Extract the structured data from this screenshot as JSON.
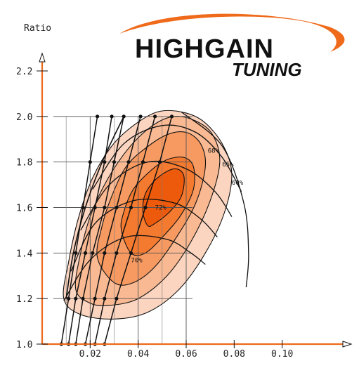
{
  "logo": {
    "word1": "HIGHGAIN",
    "word2": "TUNING"
  },
  "chart_data": {
    "type": "contour",
    "ylabel": "Ratio",
    "xlabel": "",
    "xlim": [
      0,
      0.12
    ],
    "ylim": [
      1.0,
      2.3
    ],
    "x_ticks": [
      {
        "v": 0.02,
        "label": "0.02"
      },
      {
        "v": 0.04,
        "label": "0.04"
      },
      {
        "v": 0.06,
        "label": "0.06"
      },
      {
        "v": 0.08,
        "label": "0.08"
      },
      {
        "v": 0.1,
        "label": "0.10"
      }
    ],
    "y_ticks": [
      {
        "v": 1.0,
        "label": "1.0"
      },
      {
        "v": 1.2,
        "label": "1.2"
      },
      {
        "v": 1.4,
        "label": "1.4"
      },
      {
        "v": 1.6,
        "label": "1.6"
      },
      {
        "v": 1.8,
        "label": "1.8"
      },
      {
        "v": 2.0,
        "label": "2.0"
      },
      {
        "v": 2.2,
        "label": "2.2"
      }
    ],
    "grid": true,
    "efficiency_islands": [
      {
        "label": "72%",
        "color": "#ee5a0c",
        "points": [
          [
            0.042,
            1.58
          ],
          [
            0.043,
            1.66
          ],
          [
            0.048,
            1.73
          ],
          [
            0.055,
            1.77
          ],
          [
            0.059,
            1.74
          ],
          [
            0.058,
            1.65
          ],
          [
            0.053,
            1.58
          ],
          [
            0.047,
            1.53
          ],
          [
            0.044,
            1.52
          ]
        ],
        "label_at": [
          0.047,
          1.59
        ]
      },
      {
        "label": "70%",
        "color": "#f47a30",
        "points": [
          [
            0.033,
            1.5
          ],
          [
            0.034,
            1.58
          ],
          [
            0.038,
            1.68
          ],
          [
            0.045,
            1.76
          ],
          [
            0.052,
            1.81
          ],
          [
            0.059,
            1.82
          ],
          [
            0.063,
            1.78
          ],
          [
            0.063,
            1.68
          ],
          [
            0.058,
            1.57
          ],
          [
            0.051,
            1.48
          ],
          [
            0.043,
            1.4
          ],
          [
            0.037,
            1.4
          ]
        ],
        "label_at": [
          0.037,
          1.36
        ]
      },
      {
        "label": "68%",
        "color": "#f79a62",
        "points": [
          [
            0.023,
            1.38
          ],
          [
            0.025,
            1.52
          ],
          [
            0.029,
            1.65
          ],
          [
            0.035,
            1.78
          ],
          [
            0.043,
            1.86
          ],
          [
            0.052,
            1.92
          ],
          [
            0.06,
            1.93
          ],
          [
            0.066,
            1.88
          ],
          [
            0.068,
            1.78
          ],
          [
            0.064,
            1.62
          ],
          [
            0.056,
            1.47
          ],
          [
            0.047,
            1.34
          ],
          [
            0.038,
            1.27
          ],
          [
            0.03,
            1.27
          ]
        ],
        "label_at": [
          0.069,
          1.84
        ]
      },
      {
        "label": "65%",
        "color": "#f9b993",
        "points": [
          [
            0.014,
            1.24
          ],
          [
            0.016,
            1.4
          ],
          [
            0.02,
            1.56
          ],
          [
            0.027,
            1.72
          ],
          [
            0.036,
            1.86
          ],
          [
            0.046,
            1.96
          ],
          [
            0.055,
            2.0
          ],
          [
            0.064,
            1.98
          ],
          [
            0.071,
            1.92
          ],
          [
            0.074,
            1.8
          ],
          [
            0.07,
            1.63
          ],
          [
            0.062,
            1.45
          ],
          [
            0.052,
            1.3
          ],
          [
            0.04,
            1.2
          ],
          [
            0.028,
            1.17
          ],
          [
            0.02,
            1.18
          ]
        ],
        "label_at": [
          0.075,
          1.78
        ]
      },
      {
        "label": "60%",
        "color": "#fbd5c0",
        "points": [
          [
            0.009,
            1.2
          ],
          [
            0.011,
            1.36
          ],
          [
            0.015,
            1.55
          ],
          [
            0.021,
            1.73
          ],
          [
            0.029,
            1.87
          ],
          [
            0.038,
            1.96
          ],
          [
            0.048,
            2.02
          ],
          [
            0.058,
            2.02
          ],
          [
            0.067,
            1.98
          ],
          [
            0.075,
            1.88
          ],
          [
            0.079,
            1.75
          ],
          [
            0.076,
            1.58
          ],
          [
            0.068,
            1.4
          ],
          [
            0.057,
            1.24
          ],
          [
            0.044,
            1.14
          ],
          [
            0.03,
            1.11
          ],
          [
            0.016,
            1.13
          ]
        ],
        "label_at": [
          0.079,
          1.7
        ]
      }
    ],
    "surge_line": [
      [
        0.01,
        1.2
      ],
      [
        0.013,
        1.4
      ],
      [
        0.018,
        1.6
      ],
      [
        0.025,
        1.8
      ],
      [
        0.034,
        2.0
      ]
    ],
    "speed_lines": [
      [
        [
          0.009,
          1.19
        ],
        [
          0.02,
          1.37
        ],
        [
          0.035,
          1.47
        ],
        [
          0.052,
          1.46
        ],
        [
          0.062,
          1.4
        ],
        [
          0.068,
          1.35
        ]
      ],
      [
        [
          0.012,
          1.32
        ],
        [
          0.022,
          1.53
        ],
        [
          0.038,
          1.63
        ],
        [
          0.055,
          1.62
        ],
        [
          0.066,
          1.55
        ],
        [
          0.073,
          1.47
        ]
      ],
      [
        [
          0.016,
          1.5
        ],
        [
          0.028,
          1.7
        ],
        [
          0.044,
          1.8
        ],
        [
          0.06,
          1.77
        ],
        [
          0.072,
          1.67
        ],
        [
          0.079,
          1.56
        ]
      ],
      [
        [
          0.021,
          1.68
        ],
        [
          0.034,
          1.88
        ],
        [
          0.05,
          1.96
        ],
        [
          0.064,
          1.93
        ],
        [
          0.075,
          1.82
        ],
        [
          0.083,
          1.67
        ]
      ]
    ],
    "choke_line": [
      [
        0.058,
        2.02
      ],
      [
        0.075,
        1.87
      ],
      [
        0.084,
        1.62
      ],
      [
        0.086,
        1.4
      ],
      [
        0.085,
        1.25
      ]
    ],
    "operating_lines": [
      [
        [
          0.008,
          1.0
        ],
        [
          0.011,
          1.2
        ],
        [
          0.014,
          1.4
        ],
        [
          0.017,
          1.6
        ],
        [
          0.02,
          1.8
        ],
        [
          0.023,
          2.0
        ]
      ],
      [
        [
          0.011,
          1.0
        ],
        [
          0.014,
          1.2
        ],
        [
          0.018,
          1.4
        ],
        [
          0.022,
          1.6
        ],
        [
          0.026,
          1.8
        ],
        [
          0.029,
          2.0
        ]
      ],
      [
        [
          0.014,
          1.0
        ],
        [
          0.017,
          1.2
        ],
        [
          0.021,
          1.4
        ],
        [
          0.026,
          1.6
        ],
        [
          0.03,
          1.8
        ],
        [
          0.034,
          2.0
        ]
      ],
      [
        [
          0.018,
          1.0
        ],
        [
          0.022,
          1.2
        ],
        [
          0.026,
          1.4
        ],
        [
          0.031,
          1.6
        ],
        [
          0.036,
          1.8
        ],
        [
          0.041,
          2.0
        ]
      ],
      [
        [
          0.022,
          1.0
        ],
        [
          0.026,
          1.2
        ],
        [
          0.031,
          1.4
        ],
        [
          0.037,
          1.6
        ],
        [
          0.042,
          1.8
        ],
        [
          0.047,
          2.0
        ]
      ],
      [
        [
          0.026,
          1.0
        ],
        [
          0.031,
          1.2
        ],
        [
          0.037,
          1.4
        ],
        [
          0.043,
          1.6
        ],
        [
          0.049,
          1.8
        ],
        [
          0.054,
          2.0
        ]
      ]
    ]
  }
}
